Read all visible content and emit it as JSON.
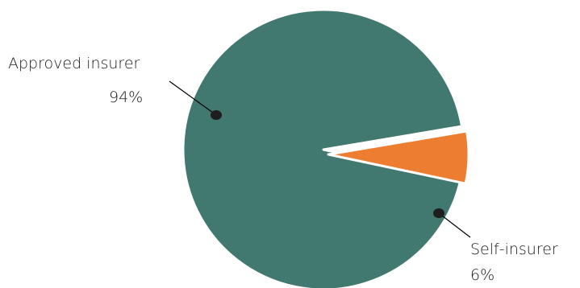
{
  "chart_data": {
    "type": "pie",
    "title": "",
    "slices": [
      {
        "label": "Approved insurer",
        "value": 94,
        "value_label": "94%",
        "color": "#41786f"
      },
      {
        "label": "Self-insurer",
        "value": 6,
        "value_label": "6%",
        "color": "#ed7d31"
      }
    ],
    "slice_border_color": "#ffffff",
    "legend": "none",
    "leader_line_color": "#000000"
  }
}
